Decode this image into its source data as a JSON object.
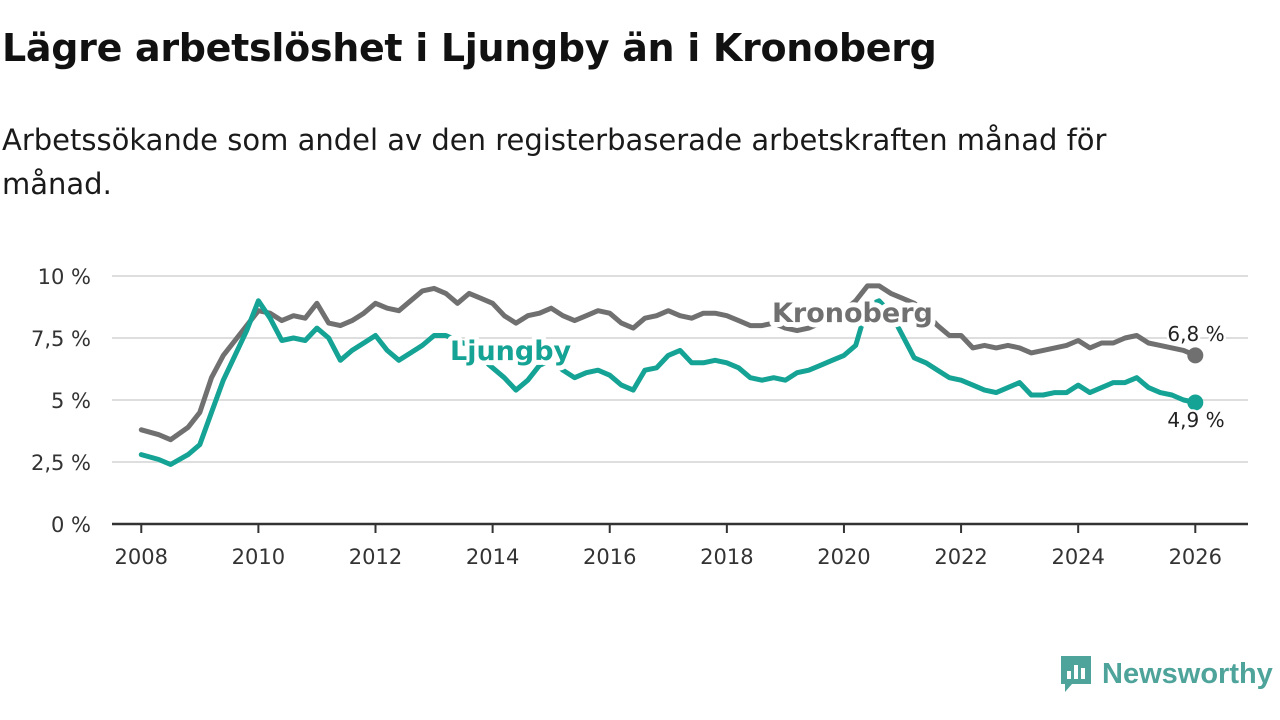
{
  "title": "Lägre arbetslöshet i Ljungby än i Kronoberg",
  "subtitle": "Arbetssökande som andel av den registerbaserade arbetskraften månad för månad.",
  "brand": "Newsworthy",
  "colors": {
    "kronoberg": "#707070",
    "ljungby": "#14a394",
    "grid": "#dedede",
    "axis": "#333333",
    "brand": "#4ea39a"
  },
  "chart_data": {
    "type": "line",
    "title": "Lägre arbetslöshet i Ljungby än i Kronoberg",
    "xlabel": "",
    "ylabel": "",
    "xlim": [
      2007.5,
      2026.9
    ],
    "ylim": [
      0,
      10
    ],
    "x_ticks": [
      2008,
      2010,
      2012,
      2014,
      2016,
      2018,
      2020,
      2022,
      2024,
      2026
    ],
    "x_tick_labels": [
      "2008",
      "2010",
      "2012",
      "2014",
      "2016",
      "2018",
      "2020",
      "2022",
      "2024",
      "2026"
    ],
    "y_ticks": [
      0,
      2.5,
      5,
      7.5,
      10
    ],
    "y_tick_labels": [
      "0 %",
      "2,5 %",
      "5 %",
      "7,5 %",
      "10 %"
    ],
    "grid": true,
    "series": [
      {
        "name": "Kronoberg",
        "label": "Kronoberg",
        "end_label": "6,8 %",
        "x": [
          2008.0,
          2008.3,
          2008.5,
          2008.8,
          2009.0,
          2009.2,
          2009.4,
          2009.6,
          2009.8,
          2010.0,
          2010.2,
          2010.4,
          2010.6,
          2010.8,
          2011.0,
          2011.2,
          2011.4,
          2011.6,
          2011.8,
          2012.0,
          2012.2,
          2012.4,
          2012.6,
          2012.8,
          2013.0,
          2013.2,
          2013.4,
          2013.6,
          2013.8,
          2014.0,
          2014.2,
          2014.4,
          2014.6,
          2014.8,
          2015.0,
          2015.2,
          2015.4,
          2015.6,
          2015.8,
          2016.0,
          2016.2,
          2016.4,
          2016.6,
          2016.8,
          2017.0,
          2017.2,
          2017.4,
          2017.6,
          2017.8,
          2018.0,
          2018.2,
          2018.4,
          2018.6,
          2018.8,
          2019.0,
          2019.2,
          2019.4,
          2019.6,
          2019.8,
          2020.0,
          2020.2,
          2020.4,
          2020.6,
          2020.8,
          2021.0,
          2021.2,
          2021.4,
          2021.6,
          2021.8,
          2022.0,
          2022.2,
          2022.4,
          2022.6,
          2022.8,
          2023.0,
          2023.2,
          2023.4,
          2023.6,
          2023.8,
          2024.0,
          2024.2,
          2024.4,
          2024.6,
          2024.8,
          2025.0,
          2025.2,
          2025.4,
          2025.6,
          2025.8,
          2026.0
        ],
        "values": [
          3.8,
          3.6,
          3.4,
          3.9,
          4.5,
          5.9,
          6.8,
          7.4,
          8.0,
          8.6,
          8.5,
          8.2,
          8.4,
          8.3,
          8.9,
          8.1,
          8.0,
          8.2,
          8.5,
          8.9,
          8.7,
          8.6,
          9.0,
          9.4,
          9.5,
          9.3,
          8.9,
          9.3,
          9.1,
          8.9,
          8.4,
          8.1,
          8.4,
          8.5,
          8.7,
          8.4,
          8.2,
          8.4,
          8.6,
          8.5,
          8.1,
          7.9,
          8.3,
          8.4,
          8.6,
          8.4,
          8.3,
          8.5,
          8.5,
          8.4,
          8.2,
          8.0,
          8.0,
          8.1,
          7.9,
          7.8,
          7.9,
          8.1,
          8.3,
          8.6,
          9.0,
          9.6,
          9.6,
          9.3,
          9.1,
          8.9,
          8.5,
          8.0,
          7.6,
          7.6,
          7.1,
          7.2,
          7.1,
          7.2,
          7.1,
          6.9,
          7.0,
          7.1,
          7.2,
          7.4,
          7.1,
          7.3,
          7.3,
          7.5,
          7.6,
          7.3,
          7.2,
          7.1,
          7.0,
          6.8
        ]
      },
      {
        "name": "Ljungby",
        "label": "Ljungby",
        "end_label": "4,9 %",
        "x": [
          2008.0,
          2008.3,
          2008.5,
          2008.8,
          2009.0,
          2009.2,
          2009.4,
          2009.6,
          2009.8,
          2010.0,
          2010.2,
          2010.4,
          2010.6,
          2010.8,
          2011.0,
          2011.2,
          2011.4,
          2011.6,
          2011.8,
          2012.0,
          2012.2,
          2012.4,
          2012.6,
          2012.8,
          2013.0,
          2013.2,
          2013.4,
          2013.6,
          2013.8,
          2014.0,
          2014.2,
          2014.4,
          2014.6,
          2014.8,
          2015.0,
          2015.2,
          2015.4,
          2015.6,
          2015.8,
          2016.0,
          2016.2,
          2016.4,
          2016.6,
          2016.8,
          2017.0,
          2017.2,
          2017.4,
          2017.6,
          2017.8,
          2018.0,
          2018.2,
          2018.4,
          2018.6,
          2018.8,
          2019.0,
          2019.2,
          2019.4,
          2019.6,
          2019.8,
          2020.0,
          2020.2,
          2020.4,
          2020.6,
          2020.8,
          2021.0,
          2021.2,
          2021.4,
          2021.6,
          2021.8,
          2022.0,
          2022.2,
          2022.4,
          2022.6,
          2022.8,
          2023.0,
          2023.2,
          2023.4,
          2023.6,
          2023.8,
          2024.0,
          2024.2,
          2024.4,
          2024.6,
          2024.8,
          2025.0,
          2025.2,
          2025.4,
          2025.6,
          2025.8,
          2026.0
        ],
        "values": [
          2.8,
          2.6,
          2.4,
          2.8,
          3.2,
          4.5,
          5.8,
          6.8,
          7.8,
          9.0,
          8.3,
          7.4,
          7.5,
          7.4,
          7.9,
          7.5,
          6.6,
          7.0,
          7.3,
          7.6,
          7.0,
          6.6,
          6.9,
          7.2,
          7.6,
          7.6,
          7.4,
          7.2,
          6.7,
          6.3,
          5.9,
          5.4,
          5.8,
          6.4,
          6.6,
          6.2,
          5.9,
          6.1,
          6.2,
          6.0,
          5.6,
          5.4,
          6.2,
          6.3,
          6.8,
          7.0,
          6.5,
          6.5,
          6.6,
          6.5,
          6.3,
          5.9,
          5.8,
          5.9,
          5.8,
          6.1,
          6.2,
          6.4,
          6.6,
          6.8,
          7.2,
          8.8,
          9.0,
          8.5,
          7.6,
          6.7,
          6.5,
          6.2,
          5.9,
          5.8,
          5.6,
          5.4,
          5.3,
          5.5,
          5.7,
          5.2,
          5.2,
          5.3,
          5.3,
          5.6,
          5.3,
          5.5,
          5.7,
          5.7,
          5.9,
          5.5,
          5.3,
          5.2,
          5.0,
          4.9
        ]
      }
    ]
  }
}
